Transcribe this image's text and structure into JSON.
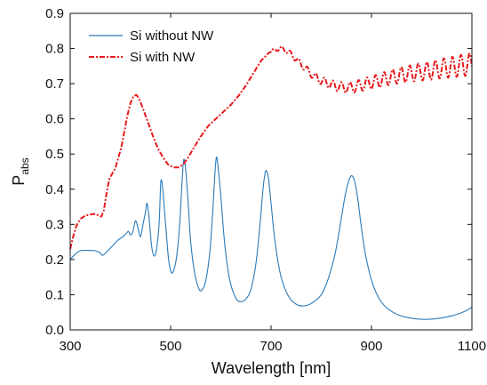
{
  "chart_data": {
    "type": "line",
    "title": "",
    "xlabel": "Wavelength [nm]",
    "ylabel": {
      "main": "P",
      "sub": "abs"
    },
    "xlim": [
      300,
      1100
    ],
    "ylim": [
      0,
      0.9
    ],
    "xticks": [
      300,
      500,
      700,
      900,
      1100
    ],
    "yticks": [
      0.0,
      0.1,
      0.2,
      0.3,
      0.4,
      0.5,
      0.6,
      0.7,
      0.8,
      0.9
    ],
    "ytick_labels": [
      "0.0",
      "0.1",
      "0.2",
      "0.3",
      "0.4",
      "0.5",
      "0.6",
      "0.7",
      "0.8",
      "0.9"
    ],
    "xtick_labels": [
      "300",
      "500",
      "700",
      "900",
      "1100"
    ],
    "grid": false,
    "legend_position": "top-left",
    "series": [
      {
        "name": "Si without NW",
        "color": "#2a7ab9",
        "style": "solid",
        "points": [
          [
            300,
            0.2
          ],
          [
            310,
            0.215
          ],
          [
            320,
            0.225
          ],
          [
            330,
            0.226
          ],
          [
            350,
            0.225
          ],
          [
            360,
            0.218
          ],
          [
            365,
            0.212
          ],
          [
            375,
            0.225
          ],
          [
            385,
            0.24
          ],
          [
            395,
            0.255
          ],
          [
            405,
            0.265
          ],
          [
            412,
            0.275
          ],
          [
            416,
            0.28
          ],
          [
            420,
            0.27
          ],
          [
            425,
            0.28
          ],
          [
            430,
            0.31
          ],
          [
            435,
            0.29
          ],
          [
            440,
            0.265
          ],
          [
            445,
            0.3
          ],
          [
            450,
            0.335
          ],
          [
            453,
            0.36
          ],
          [
            457,
            0.32
          ],
          [
            462,
            0.24
          ],
          [
            467,
            0.21
          ],
          [
            472,
            0.23
          ],
          [
            477,
            0.3
          ],
          [
            480,
            0.41
          ],
          [
            482,
            0.425
          ],
          [
            485,
            0.39
          ],
          [
            490,
            0.3
          ],
          [
            496,
            0.2
          ],
          [
            502,
            0.162
          ],
          [
            508,
            0.178
          ],
          [
            513,
            0.22
          ],
          [
            518,
            0.3
          ],
          [
            522,
            0.4
          ],
          [
            525,
            0.47
          ],
          [
            527,
            0.485
          ],
          [
            530,
            0.455
          ],
          [
            535,
            0.36
          ],
          [
            540,
            0.25
          ],
          [
            548,
            0.16
          ],
          [
            557,
            0.115
          ],
          [
            563,
            0.115
          ],
          [
            570,
            0.14
          ],
          [
            578,
            0.22
          ],
          [
            584,
            0.34
          ],
          [
            588,
            0.44
          ],
          [
            591,
            0.49
          ],
          [
            594,
            0.47
          ],
          [
            600,
            0.38
          ],
          [
            608,
            0.24
          ],
          [
            618,
            0.14
          ],
          [
            630,
            0.09
          ],
          [
            640,
            0.08
          ],
          [
            650,
            0.088
          ],
          [
            660,
            0.115
          ],
          [
            670,
            0.19
          ],
          [
            678,
            0.3
          ],
          [
            684,
            0.4
          ],
          [
            688,
            0.445
          ],
          [
            691,
            0.452
          ],
          [
            695,
            0.43
          ],
          [
            700,
            0.36
          ],
          [
            708,
            0.25
          ],
          [
            720,
            0.15
          ],
          [
            735,
            0.095
          ],
          [
            750,
            0.073
          ],
          [
            765,
            0.068
          ],
          [
            780,
            0.075
          ],
          [
            800,
            0.1
          ],
          [
            815,
            0.15
          ],
          [
            828,
            0.22
          ],
          [
            838,
            0.3
          ],
          [
            846,
            0.37
          ],
          [
            852,
            0.41
          ],
          [
            858,
            0.435
          ],
          [
            862,
            0.437
          ],
          [
            867,
            0.42
          ],
          [
            873,
            0.37
          ],
          [
            880,
            0.29
          ],
          [
            890,
            0.2
          ],
          [
            905,
            0.12
          ],
          [
            925,
            0.07
          ],
          [
            950,
            0.045
          ],
          [
            980,
            0.033
          ],
          [
            1010,
            0.03
          ],
          [
            1040,
            0.034
          ],
          [
            1065,
            0.042
          ],
          [
            1085,
            0.052
          ],
          [
            1100,
            0.065
          ]
        ]
      },
      {
        "name": "Si with NW",
        "color": "#e8191c",
        "style": "dashdot",
        "points": [
          [
            300,
            0.23
          ],
          [
            305,
            0.26
          ],
          [
            312,
            0.295
          ],
          [
            320,
            0.315
          ],
          [
            330,
            0.325
          ],
          [
            340,
            0.328
          ],
          [
            350,
            0.33
          ],
          [
            357,
            0.325
          ],
          [
            362,
            0.322
          ],
          [
            367,
            0.34
          ],
          [
            372,
            0.385
          ],
          [
            378,
            0.43
          ],
          [
            384,
            0.445
          ],
          [
            390,
            0.46
          ],
          [
            396,
            0.49
          ],
          [
            402,
            0.52
          ],
          [
            408,
            0.565
          ],
          [
            414,
            0.61
          ],
          [
            420,
            0.645
          ],
          [
            426,
            0.665
          ],
          [
            432,
            0.668
          ],
          [
            438,
            0.655
          ],
          [
            446,
            0.625
          ],
          [
            455,
            0.59
          ],
          [
            465,
            0.55
          ],
          [
            475,
            0.515
          ],
          [
            485,
            0.49
          ],
          [
            495,
            0.47
          ],
          [
            505,
            0.462
          ],
          [
            515,
            0.462
          ],
          [
            525,
            0.47
          ],
          [
            535,
            0.49
          ],
          [
            545,
            0.515
          ],
          [
            560,
            0.55
          ],
          [
            575,
            0.58
          ],
          [
            590,
            0.6
          ],
          [
            605,
            0.62
          ],
          [
            620,
            0.64
          ],
          [
            635,
            0.665
          ],
          [
            650,
            0.695
          ],
          [
            665,
            0.73
          ],
          [
            680,
            0.765
          ],
          [
            695,
            0.787
          ],
          [
            710,
            0.798
          ],
          [
            722,
            0.8
          ],
          [
            735,
            0.79
          ],
          [
            750,
            0.77
          ],
          [
            765,
            0.748
          ],
          [
            780,
            0.728
          ],
          [
            795,
            0.712
          ],
          [
            810,
            0.703
          ],
          [
            825,
            0.695
          ],
          [
            840,
            0.69
          ],
          [
            855,
            0.688
          ],
          [
            870,
            0.692
          ],
          [
            885,
            0.698
          ],
          [
            900,
            0.703
          ],
          [
            915,
            0.708
          ],
          [
            930,
            0.715
          ],
          [
            945,
            0.72
          ],
          [
            960,
            0.725
          ],
          [
            975,
            0.728
          ],
          [
            990,
            0.732
          ],
          [
            1005,
            0.735
          ],
          [
            1020,
            0.738
          ],
          [
            1035,
            0.742
          ],
          [
            1050,
            0.745
          ],
          [
            1065,
            0.748
          ],
          [
            1080,
            0.752
          ],
          [
            1100,
            0.755
          ]
        ],
        "ripple": {
          "start": 700,
          "end": 1100,
          "amplitude_max": 0.032,
          "period": 17
        }
      }
    ]
  }
}
